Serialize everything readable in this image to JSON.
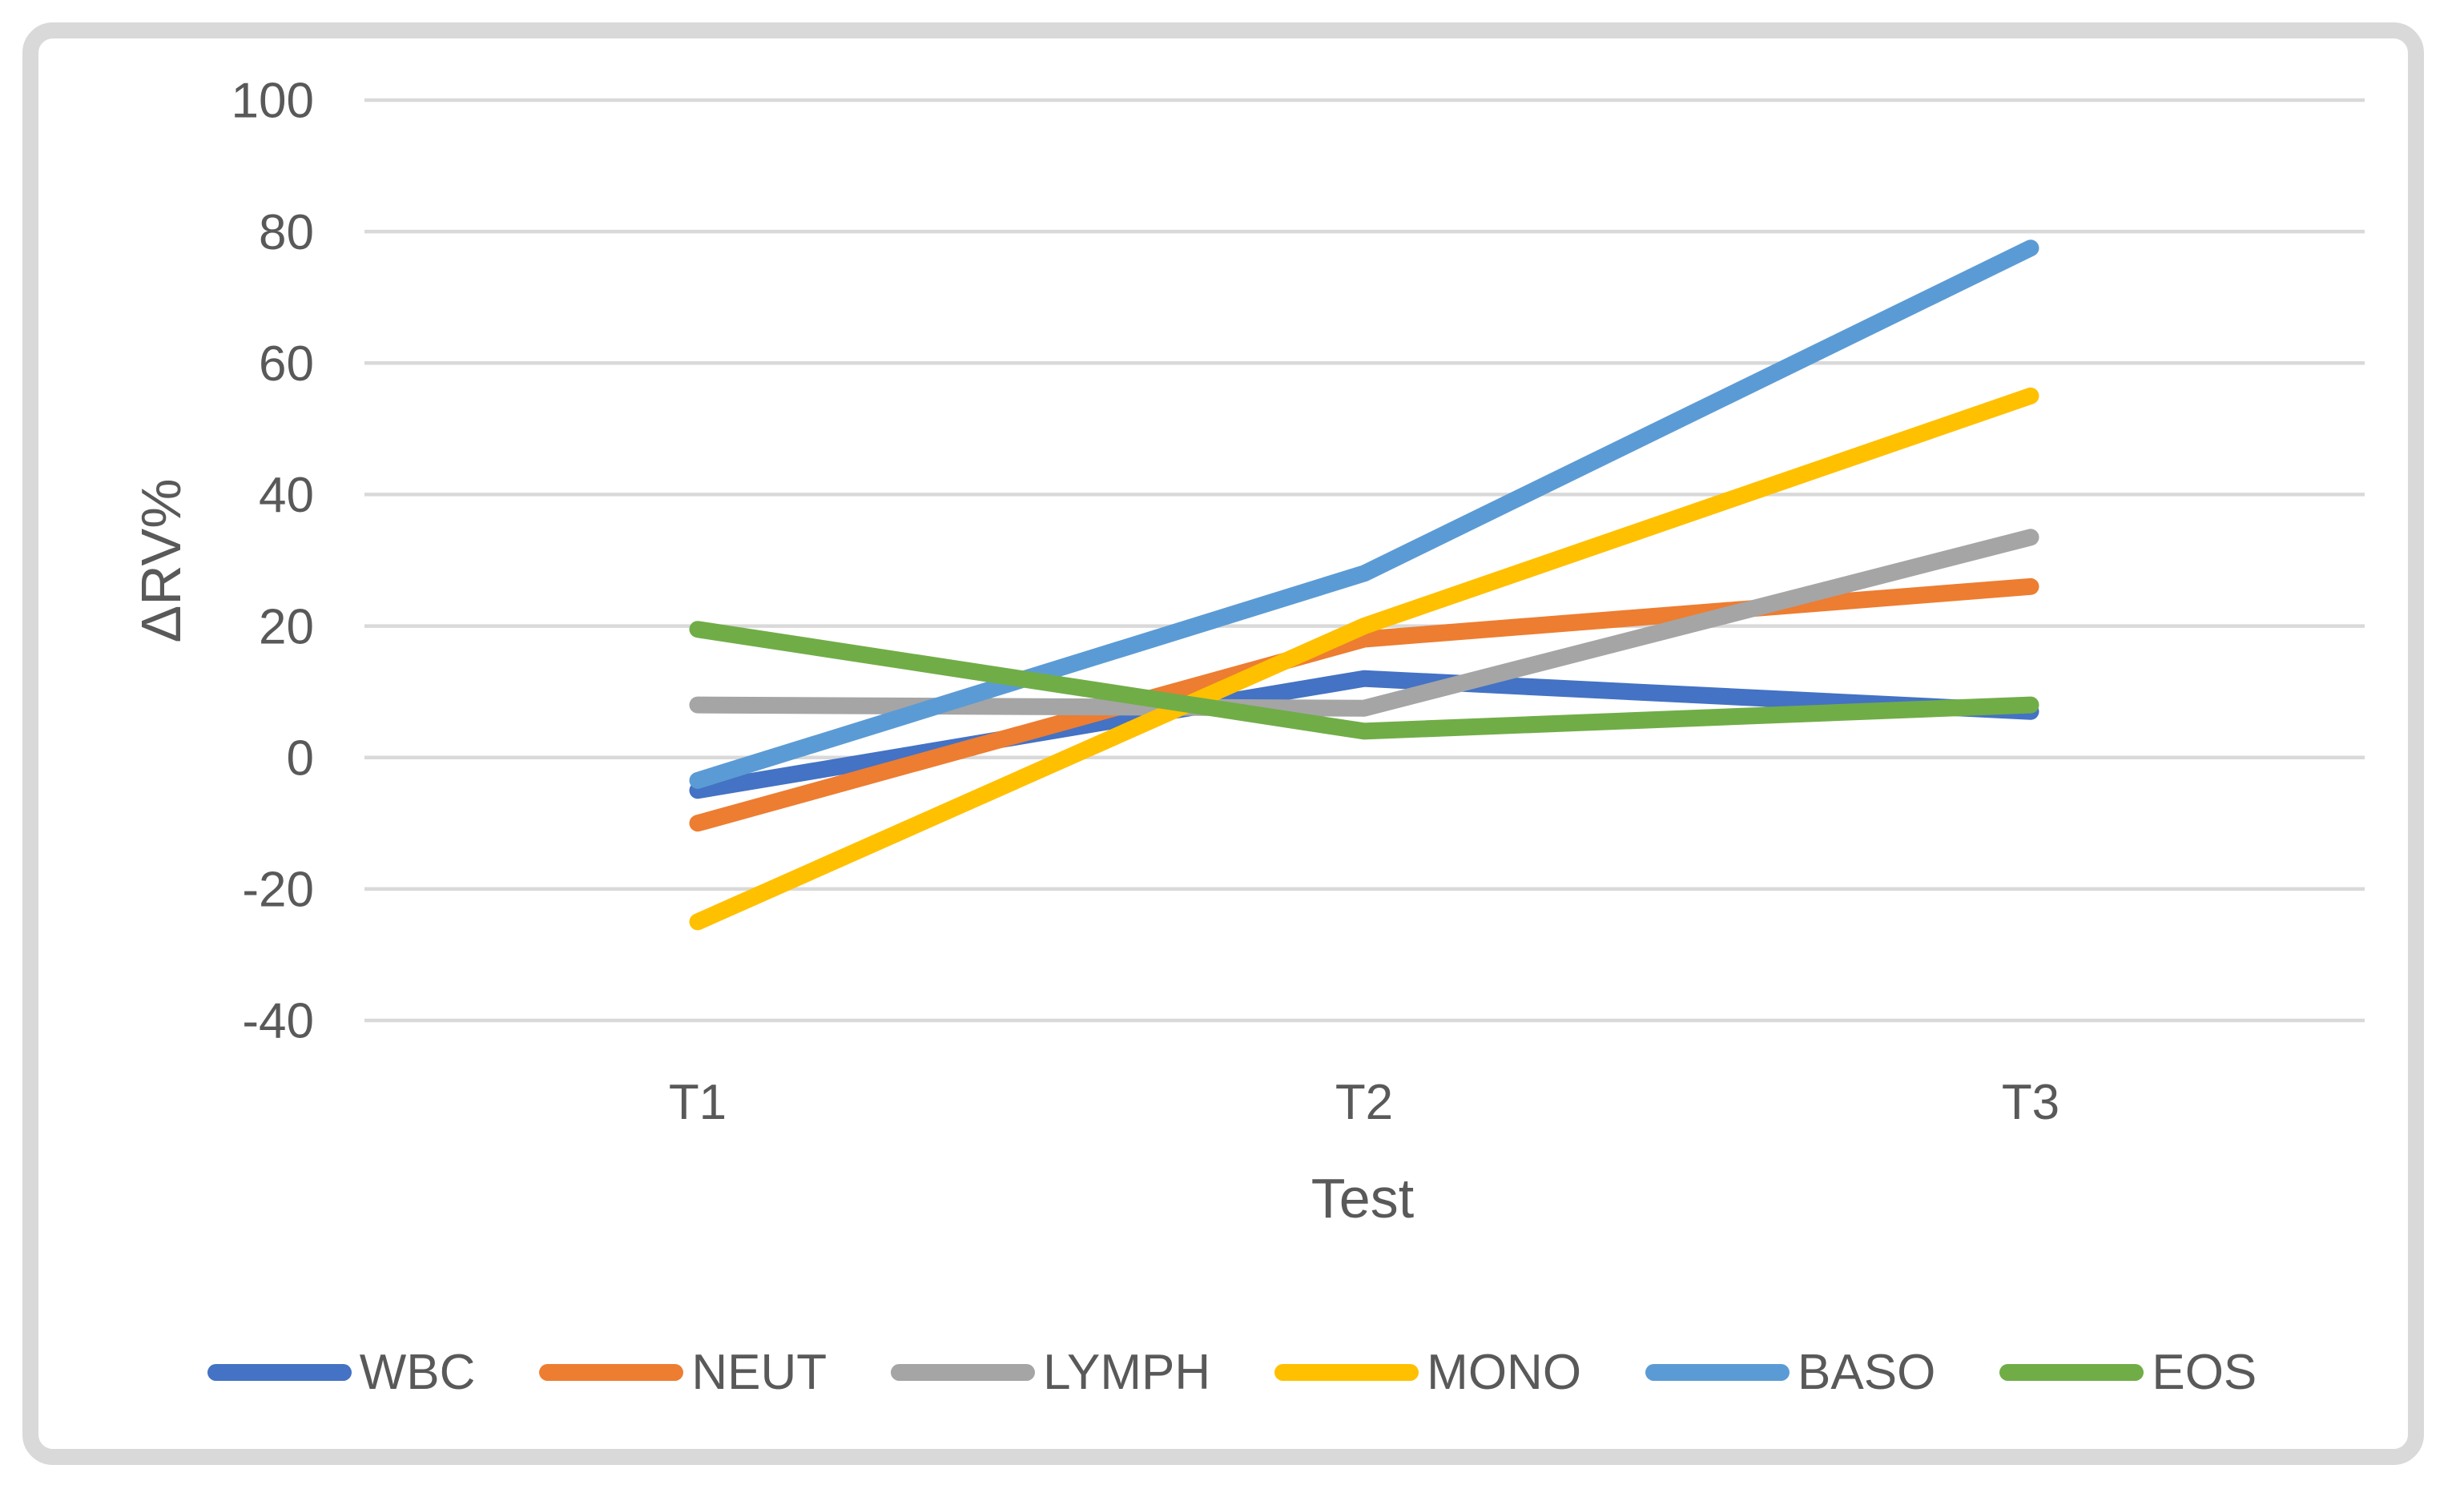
{
  "chart_data": {
    "type": "line",
    "title": "",
    "categories": [
      "T1",
      "T2",
      "T3"
    ],
    "series": [
      {
        "name": "WBC",
        "color": "#4472C4",
        "values": [
          -5,
          12,
          7
        ]
      },
      {
        "name": "NEUT",
        "color": "#ED7D31",
        "values": [
          -10,
          18,
          26
        ]
      },
      {
        "name": "LYMPH",
        "color": "#A5A5A5",
        "values": [
          8,
          7.5,
          33.5
        ]
      },
      {
        "name": "MONO",
        "color": "#FFC000",
        "values": [
          -25,
          20,
          55
        ]
      },
      {
        "name": "BASO",
        "color": "#5B9BD5",
        "values": [
          -3.5,
          28,
          77.5
        ]
      },
      {
        "name": "EOS",
        "color": "#70AD47",
        "values": [
          19.5,
          4,
          8
        ]
      }
    ],
    "xlabel": "Test",
    "ylabel": "ΔRV%",
    "ylim": [
      -40,
      100
    ],
    "yticks": [
      100,
      80,
      60,
      40,
      20,
      0,
      -20,
      -40
    ],
    "grid": true,
    "legend_position": "bottom"
  },
  "styles": {
    "text_color": "#595959",
    "gridline_color": "#D9D9D9",
    "frame_color": "#D9D9D9",
    "background": "#FFFFFF"
  }
}
